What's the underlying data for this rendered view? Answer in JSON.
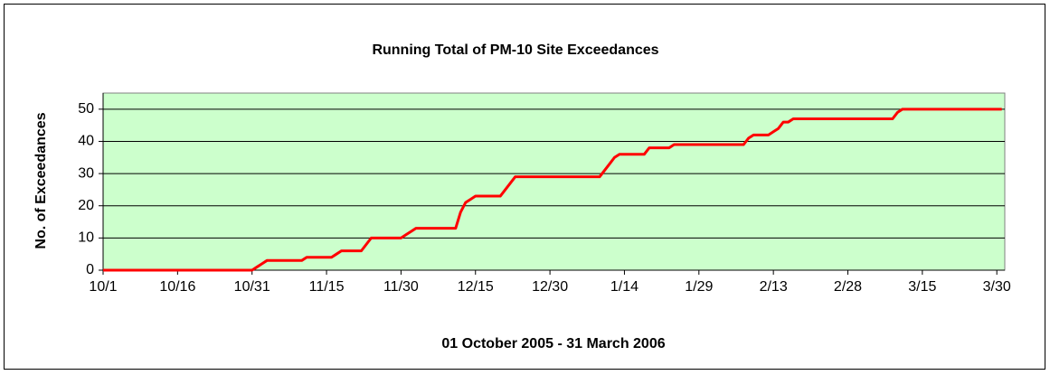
{
  "chart_data": {
    "type": "line",
    "title": "Running Total of PM-10 Site Exceedances",
    "y_label": "No. of Exceedances",
    "x_label": "01 October 2005 - 31 March 2006",
    "categories": [
      "10/1",
      null,
      null,
      null,
      null,
      null,
      null,
      null,
      null,
      null,
      null,
      null,
      null,
      null,
      null,
      "10/16",
      null,
      null,
      null,
      null,
      null,
      null,
      null,
      null,
      null,
      null,
      null,
      null,
      null,
      null,
      "10/31",
      null,
      null,
      null,
      null,
      null,
      null,
      null,
      null,
      null,
      null,
      null,
      null,
      null,
      null,
      "11/15",
      null,
      null,
      null,
      null,
      null,
      null,
      null,
      null,
      null,
      null,
      null,
      null,
      null,
      null,
      "11/30",
      null,
      null,
      null,
      null,
      null,
      null,
      null,
      null,
      null,
      null,
      null,
      null,
      null,
      null,
      "12/15",
      null,
      null,
      null,
      null,
      null,
      null,
      null,
      null,
      null,
      null,
      null,
      null,
      null,
      null,
      "12/30",
      null,
      null,
      null,
      null,
      null,
      null,
      null,
      null,
      null,
      null,
      null,
      null,
      null,
      null,
      "1/14",
      null,
      null,
      null,
      null,
      null,
      null,
      null,
      null,
      null,
      null,
      null,
      null,
      null,
      null,
      "1/29",
      null,
      null,
      null,
      null,
      null,
      null,
      null,
      null,
      null,
      null,
      null,
      null,
      null,
      null,
      "2/13",
      null,
      null,
      null,
      null,
      null,
      null,
      null,
      null,
      null,
      null,
      null,
      null,
      null,
      null,
      "2/28",
      null,
      null,
      null,
      null,
      null,
      null,
      null,
      null,
      null,
      null,
      null,
      null,
      null,
      null,
      "3/15",
      null,
      null,
      null,
      null,
      null,
      null,
      null,
      null,
      null,
      null,
      null,
      null,
      null,
      null,
      "3/30",
      null
    ],
    "values": [
      0,
      0,
      0,
      0,
      0,
      0,
      0,
      0,
      0,
      0,
      0,
      0,
      0,
      0,
      0,
      0,
      0,
      0,
      0,
      0,
      0,
      0,
      0,
      0,
      0,
      0,
      0,
      0,
      0,
      0,
      0,
      1,
      2,
      3,
      3,
      3,
      3,
      3,
      3,
      3,
      3,
      4,
      4,
      4,
      4,
      4,
      4,
      5,
      6,
      6,
      6,
      6,
      6,
      8,
      10,
      10,
      10,
      10,
      10,
      10,
      10,
      11,
      12,
      13,
      13,
      13,
      13,
      13,
      13,
      13,
      13,
      13,
      18,
      21,
      22,
      23,
      23,
      23,
      23,
      23,
      23,
      25,
      27,
      29,
      29,
      29,
      29,
      29,
      29,
      29,
      29,
      29,
      29,
      29,
      29,
      29,
      29,
      29,
      29,
      29,
      29,
      31,
      33,
      35,
      36,
      36,
      36,
      36,
      36,
      36,
      38,
      38,
      38,
      38,
      38,
      39,
      39,
      39,
      39,
      39,
      39,
      39,
      39,
      39,
      39,
      39,
      39,
      39,
      39,
      39,
      41,
      42,
      42,
      42,
      42,
      43,
      44,
      46,
      46,
      47,
      47,
      47,
      47,
      47,
      47,
      47,
      47,
      47,
      47,
      47,
      47,
      47,
      47,
      47,
      47,
      47,
      47,
      47,
      47,
      47,
      49,
      50,
      50,
      50,
      50,
      50,
      50,
      50,
      50,
      50,
      50,
      50,
      50,
      50,
      50,
      50,
      50,
      50,
      50,
      50,
      50,
      50
    ],
    "color": "#ff0000",
    "plot_background": "#ccffcc",
    "ylim": [
      0,
      55
    ],
    "yticks": [
      0,
      10,
      20,
      30,
      40,
      50
    ],
    "grid": true
  }
}
